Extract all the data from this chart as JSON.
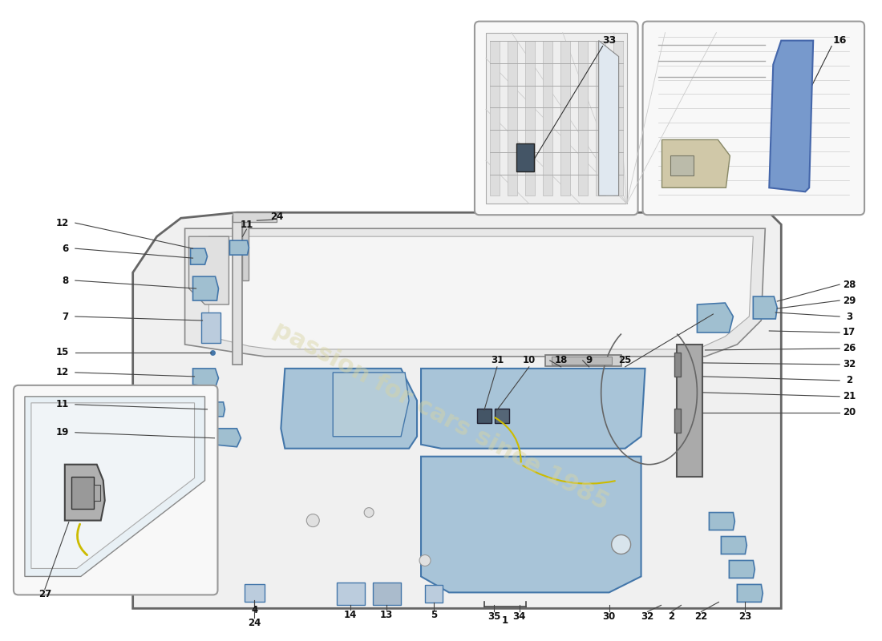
{
  "bg_color": "#ffffff",
  "door_edge": "#666666",
  "door_fill": "#f2f2f2",
  "panel_fill": "#c8d8e8",
  "panel_edge": "#5588aa",
  "inset_fill": "#f8f8f8",
  "inset_edge": "#999999",
  "bracket_fill": "#a0bfd0",
  "bracket_edge": "#4477aa",
  "watermark_color": "#d8d4a0",
  "watermark_alpha": 0.45,
  "label_color": "#111111",
  "line_color": "#444444",
  "label_fs": 8.5
}
